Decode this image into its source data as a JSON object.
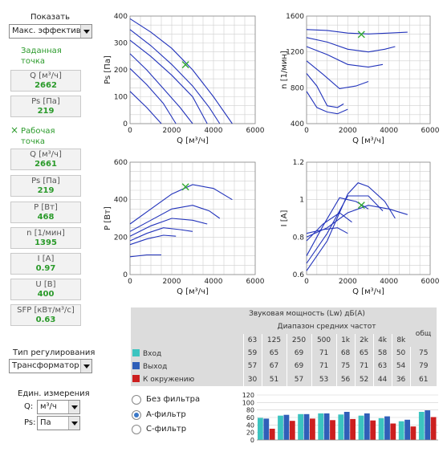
{
  "left": {
    "show_label": "Показать",
    "show_select": "Макс. эффективн",
    "setpoint_title": "Заданная точка",
    "setpoint": [
      {
        "label": "Q [м³/ч]",
        "value": "2662"
      },
      {
        "label": "Ps [Па]",
        "value": "219"
      }
    ],
    "workpoint_marker": "×",
    "workpoint_title": "Рабочая точка",
    "workpoint": [
      {
        "label": "Q [м³/ч]",
        "value": "2661"
      },
      {
        "label": "Ps [Па]",
        "value": "219"
      },
      {
        "label": "P [Вт]",
        "value": "468"
      },
      {
        "label": "n [1/мин]",
        "value": "1395"
      },
      {
        "label": "I [A]",
        "value": "0.97"
      },
      {
        "label": "U [В]",
        "value": "400"
      },
      {
        "label": "SFP [кВт/м³/с]",
        "value": "0.63"
      }
    ],
    "regulation_label": "Тип регулирования",
    "regulation_select": "Трансформатор",
    "units_label": "Един. измерения",
    "q_label": "Q:",
    "q_unit": "м³/ч",
    "ps_label": "Ps:",
    "ps_unit": "Па"
  },
  "colors": {
    "curve": "#2233bb",
    "grid": "#cfcfcf",
    "marker": "#33aa33",
    "inlet": "#3cc4c0",
    "outlet": "#2f5fb8",
    "surround": "#cc1f1f"
  },
  "chart_data": [
    {
      "type": "line",
      "xlabel": "Q [м³/ч]",
      "ylabel": "Ps [Па]",
      "xlim": [
        0,
        6000
      ],
      "ylim": [
        0,
        400
      ],
      "xticks": [
        "0",
        "2000",
        "4000",
        "6000"
      ],
      "yticks": [
        "0",
        "100",
        "200",
        "300",
        "400"
      ],
      "series": [
        {
          "x": [
            0,
            1000,
            2000,
            3000,
            4000,
            4900
          ],
          "y": [
            390,
            340,
            280,
            200,
            100,
            0
          ]
        },
        {
          "x": [
            0,
            1000,
            2000,
            3000,
            3800,
            4300
          ],
          "y": [
            350,
            290,
            220,
            140,
            60,
            0
          ]
        },
        {
          "x": [
            0,
            1000,
            2000,
            3000,
            3700
          ],
          "y": [
            310,
            250,
            180,
            100,
            0
          ]
        },
        {
          "x": [
            0,
            800,
            1600,
            2400,
            3000
          ],
          "y": [
            260,
            200,
            130,
            60,
            0
          ]
        },
        {
          "x": [
            0,
            800,
            1600,
            2200
          ],
          "y": [
            205,
            145,
            75,
            0
          ]
        },
        {
          "x": [
            0,
            800,
            1500
          ],
          "y": [
            120,
            60,
            0
          ]
        }
      ],
      "marker": {
        "x": 2661,
        "y": 219
      }
    },
    {
      "type": "line",
      "xlabel": "Q [м³/ч]",
      "ylabel": "n [1/мин]",
      "xlim": [
        0,
        6000
      ],
      "ylim": [
        400,
        1600
      ],
      "xticks": [
        "0",
        "2000",
        "4000",
        "6000"
      ],
      "yticks": [
        "400",
        "800",
        "1200",
        "1600"
      ],
      "series": [
        {
          "x": [
            0,
            1000,
            2000,
            3000,
            4000,
            4900
          ],
          "y": [
            1450,
            1440,
            1410,
            1400,
            1410,
            1420
          ]
        },
        {
          "x": [
            0,
            1000,
            2000,
            3000,
            3800,
            4300
          ],
          "y": [
            1360,
            1310,
            1230,
            1200,
            1230,
            1260
          ]
        },
        {
          "x": [
            0,
            1000,
            2000,
            3000,
            3700
          ],
          "y": [
            1260,
            1170,
            1060,
            1030,
            1060
          ]
        },
        {
          "x": [
            0,
            800,
            1600,
            2400,
            3000
          ],
          "y": [
            1100,
            950,
            790,
            820,
            870
          ]
        },
        {
          "x": [
            0,
            500,
            1000,
            1500,
            1800
          ],
          "y": [
            960,
            820,
            600,
            580,
            620
          ]
        },
        {
          "x": [
            0,
            500,
            1000,
            1500,
            2000
          ],
          "y": [
            760,
            580,
            530,
            510,
            560
          ]
        }
      ],
      "marker": {
        "x": 2661,
        "y": 1395
      }
    },
    {
      "type": "line",
      "xlabel": "Q [м³/ч]",
      "ylabel": "P [Вт]",
      "xlim": [
        0,
        6000
      ],
      "ylim": [
        0,
        600
      ],
      "xticks": [
        "0",
        "2000",
        "4000",
        "6000"
      ],
      "yticks": [
        "0",
        "200",
        "400",
        "600"
      ],
      "series": [
        {
          "x": [
            0,
            1000,
            2000,
            3000,
            4000,
            4900
          ],
          "y": [
            270,
            350,
            430,
            480,
            460,
            400
          ]
        },
        {
          "x": [
            0,
            1000,
            2000,
            3000,
            3800,
            4300
          ],
          "y": [
            230,
            290,
            350,
            370,
            340,
            300
          ]
        },
        {
          "x": [
            0,
            1000,
            2000,
            3000,
            3700
          ],
          "y": [
            205,
            260,
            300,
            290,
            270
          ]
        },
        {
          "x": [
            0,
            800,
            1600,
            2400,
            3000
          ],
          "y": [
            180,
            220,
            250,
            240,
            230
          ]
        },
        {
          "x": [
            0,
            800,
            1600,
            2200
          ],
          "y": [
            160,
            190,
            210,
            205
          ]
        },
        {
          "x": [
            0,
            800,
            1500
          ],
          "y": [
            95,
            105,
            105
          ]
        }
      ],
      "marker": {
        "x": 2661,
        "y": 468
      }
    },
    {
      "type": "line",
      "xlabel": "Q [м³/ч]",
      "ylabel": "I [A]",
      "xlim": [
        0,
        6000
      ],
      "ylim": [
        0.6,
        1.2
      ],
      "xticks": [
        "0",
        "2000",
        "4000",
        "6000"
      ],
      "yticks": [
        "0.6",
        "0.8",
        "1",
        "1.2"
      ],
      "series": [
        {
          "x": [
            0,
            1000,
            2000,
            3000,
            4000,
            4900
          ],
          "y": [
            0.8,
            0.85,
            0.93,
            0.97,
            0.95,
            0.92
          ]
        },
        {
          "x": [
            0,
            1000,
            2000,
            2500,
            3000,
            3800,
            4300
          ],
          "y": [
            0.62,
            0.78,
            1.03,
            1.09,
            1.07,
            0.99,
            0.9
          ]
        },
        {
          "x": [
            0,
            1000,
            2000,
            3000,
            3700
          ],
          "y": [
            0.66,
            0.82,
            1.02,
            1.02,
            0.94
          ]
        },
        {
          "x": [
            0,
            800,
            1600,
            2400,
            3000
          ],
          "y": [
            0.7,
            0.86,
            1.01,
            0.99,
            0.95
          ]
        },
        {
          "x": [
            0,
            800,
            1600,
            2200
          ],
          "y": [
            0.78,
            0.87,
            0.93,
            0.88
          ]
        },
        {
          "x": [
            0,
            800,
            1500,
            2000
          ],
          "y": [
            0.82,
            0.84,
            0.85,
            0.82
          ]
        }
      ],
      "marker": {
        "x": 2661,
        "y": 0.97
      }
    },
    {
      "type": "bar",
      "categories": [
        "63",
        "125",
        "250",
        "500",
        "1k",
        "2k",
        "4k",
        "8k",
        "общ"
      ],
      "ylim": [
        0,
        120
      ],
      "yticks": [
        "0",
        "20",
        "40",
        "60",
        "80",
        "100",
        "120"
      ],
      "series": [
        {
          "name": "Вход",
          "values": [
            59,
            65,
            69,
            71,
            68,
            65,
            58,
            50,
            75
          ]
        },
        {
          "name": "Выход",
          "values": [
            57,
            67,
            69,
            71,
            75,
            71,
            63,
            54,
            79
          ]
        },
        {
          "name": "К окружению",
          "values": [
            30,
            51,
            57,
            53,
            56,
            52,
            44,
            36,
            61
          ]
        }
      ]
    }
  ],
  "sound": {
    "title": "Звуковая мощность (Lw) дБ(A)",
    "subtitle": "Диапазон средних частот",
    "total_label": "общ",
    "bands": [
      "63",
      "125",
      "250",
      "500",
      "1k",
      "2k",
      "4k",
      "8k"
    ],
    "rows": [
      {
        "label": "Вход",
        "values": [
          "59",
          "65",
          "69",
          "71",
          "68",
          "65",
          "58",
          "50"
        ],
        "total": "75"
      },
      {
        "label": "Выход",
        "values": [
          "57",
          "67",
          "69",
          "71",
          "75",
          "71",
          "63",
          "54"
        ],
        "total": "79"
      },
      {
        "label": "К окружению",
        "values": [
          "30",
          "51",
          "57",
          "53",
          "56",
          "52",
          "44",
          "36"
        ],
        "total": "61"
      }
    ]
  },
  "filters": {
    "none": "Без фильтра",
    "a": "A-фильтр",
    "c": "C-фильтр",
    "selected": "a"
  }
}
